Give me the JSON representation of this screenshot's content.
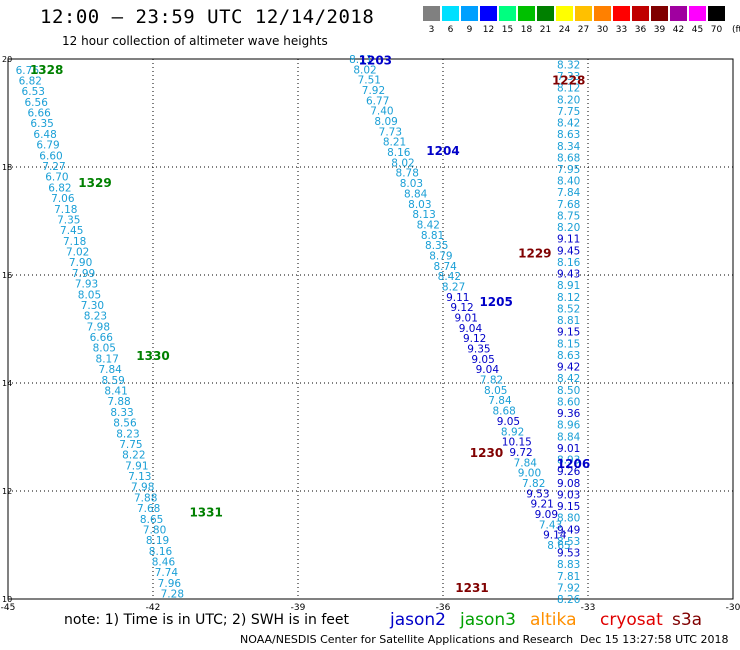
{
  "title": "12:00 – 23:59 UTC 12/14/2018",
  "subtitle": "12 hour collection of altimeter wave heights",
  "scale": {
    "unit": "(ft)",
    "bins": [
      {
        "label": "3",
        "color": "#808080"
      },
      {
        "label": "6",
        "color": "#00e0ff"
      },
      {
        "label": "9",
        "color": "#00a0ff"
      },
      {
        "label": "12",
        "color": "#0000ff"
      },
      {
        "label": "15",
        "color": "#00ff80"
      },
      {
        "label": "18",
        "color": "#00c000"
      },
      {
        "label": "21",
        "color": "#008000"
      },
      {
        "label": "24",
        "color": "#ffff00"
      },
      {
        "label": "27",
        "color": "#ffc000"
      },
      {
        "label": "30",
        "color": "#ff8000"
      },
      {
        "label": "33",
        "color": "#ff0000"
      },
      {
        "label": "36",
        "color": "#c00000"
      },
      {
        "label": "39",
        "color": "#800000"
      },
      {
        "label": "42",
        "color": "#a000a0"
      },
      {
        "label": "45",
        "color": "#ff00ff"
      },
      {
        "label": "70",
        "color": "#000000"
      }
    ]
  },
  "axes": {
    "lon_ticks": [
      -45,
      -42,
      -39,
      -36,
      -33,
      -30
    ],
    "lat_ticks": [
      10,
      12,
      14,
      16,
      18,
      20
    ],
    "lon_labels": [
      "-45",
      "-42",
      "-39",
      "-36",
      "-33",
      "-30"
    ],
    "lat_labels": [
      "10",
      "12",
      "14",
      "16",
      "18",
      "20"
    ],
    "lon_range": [
      -45,
      -30
    ],
    "lat_range": [
      10,
      20
    ]
  },
  "colors": {
    "light": "#1a9fd6",
    "dark": "#0000c8",
    "green": "#008000",
    "maroon": "#800000"
  },
  "track_labels": [
    {
      "text": "1328",
      "lon": -44.2,
      "lat": 19.8,
      "color": "green"
    },
    {
      "text": "1329",
      "lon": -43.2,
      "lat": 17.7,
      "color": "green"
    },
    {
      "text": "1330",
      "lon": -42.0,
      "lat": 14.5,
      "color": "green"
    },
    {
      "text": "1331",
      "lon": -40.9,
      "lat": 11.6,
      "color": "green"
    },
    {
      "text": "1203",
      "lon": -37.4,
      "lat": 19.97,
      "color": "dark"
    },
    {
      "text": "1204",
      "lon": -36.0,
      "lat": 18.3,
      "color": "dark"
    },
    {
      "text": "1205",
      "lon": -34.9,
      "lat": 15.5,
      "color": "dark"
    },
    {
      "text": "1206",
      "lon": -33.3,
      "lat": 12.5,
      "color": "dark"
    },
    {
      "text": "1228",
      "lon": -33.4,
      "lat": 19.6,
      "color": "maroon"
    },
    {
      "text": "1229",
      "lon": -34.1,
      "lat": 16.4,
      "color": "maroon"
    },
    {
      "text": "1230",
      "lon": -35.1,
      "lat": 12.7,
      "color": "maroon"
    },
    {
      "text": "1231",
      "lon": -35.4,
      "lat": 10.2,
      "color": "maroon"
    }
  ],
  "tracks": [
    {
      "name": "1328-1331",
      "lon_start": -44.6,
      "lat_start": 19.8,
      "lon_end": -41.6,
      "lat_end": 10.1,
      "color": "light",
      "values": [
        "6.76",
        "6.82",
        "6.53",
        "6.56",
        "6.66",
        "6.35",
        "6.48",
        "6.79",
        "6.60",
        "7.27",
        "6.70",
        "6.82",
        "7.06",
        "7.18",
        "7.35",
        "7.45",
        "7.18",
        "7.02",
        "7.90",
        "7.99",
        "7.93",
        "8.05",
        "7.30",
        "8.23",
        "7.98",
        "6.66",
        "8.05",
        "8.17",
        "7.84",
        "8.59",
        "8.41",
        "7.88",
        "8.33",
        "8.56",
        "8.23",
        "7.75",
        "8.22",
        "7.91",
        "7.13",
        "7.98",
        "7.88",
        "7.68",
        "8.65",
        "7.80",
        "8.19",
        "8.16",
        "8.46",
        "7.74",
        "7.96",
        "7.28"
      ],
      "dark_indices": []
    },
    {
      "name": "1203-1206",
      "lon_start": -37.7,
      "lat_start": 20.0,
      "lon_end": -33.6,
      "lat_end": 11.0,
      "color": "light",
      "values": [
        "8.11",
        "8.02",
        "7.51",
        "7.92",
        "6.77",
        "7.40",
        "8.09",
        "7.73",
        "8.21",
        "8.16",
        "8.02",
        "8.78",
        "8.03",
        "8.84",
        "8.03",
        "8.13",
        "8.42",
        "8.81",
        "8.35",
        "8.79",
        "8.74",
        "8.42",
        "8.27",
        "9.11",
        "9.12",
        "9.01",
        "9.04",
        "9.12",
        "9.35",
        "9.05",
        "9.04",
        "7.82",
        "8.05",
        "7.84",
        "8.68",
        "9.05",
        "8.92",
        "10.15",
        "9.72",
        "7.84",
        "9.00",
        "7.82",
        "9.53",
        "9.21",
        "9.09",
        "7.43",
        "9.14",
        "8.65"
      ],
      "dark_indices": [
        23,
        24,
        25,
        26,
        27,
        28,
        29,
        30,
        35,
        37,
        38,
        42,
        43,
        44,
        46
      ]
    },
    {
      "name": "1228-1231",
      "lon_start": -33.4,
      "lat_start": 19.9,
      "lon_end": -33.4,
      "lat_end": 10.0,
      "color": "light",
      "values": [
        "8.32",
        "7.33",
        "8.12",
        "8.20",
        "7.75",
        "8.42",
        "8.63",
        "8.34",
        "8.68",
        "7.95",
        "8.40",
        "7.84",
        "7.68",
        "8.75",
        "8.20",
        "9.11",
        "9.45",
        "8.16",
        "9.43",
        "8.91",
        "8.12",
        "8.52",
        "8.81",
        "9.15",
        "8.15",
        "8.63",
        "9.42",
        "8.42",
        "8.50",
        "8.60",
        "9.36",
        "8.96",
        "8.84",
        "9.01",
        "8.93",
        "9.26",
        "9.08",
        "9.03",
        "9.15",
        "8.80",
        "9.49",
        "8.53",
        "9.53",
        "8.83",
        "7.81",
        "7.92",
        "8.26"
      ],
      "dark_indices": [
        15,
        16,
        18,
        23,
        26,
        30,
        33,
        35,
        36,
        37,
        38,
        40,
        42
      ]
    }
  ],
  "note": "note:  1) Time is in UTC;  2) SWH is in feet",
  "legend": [
    {
      "name": "jason2",
      "color": "#0000c8"
    },
    {
      "name": "jason3",
      "color": "#00a000"
    },
    {
      "name": "altika",
      "color": "#ff9000"
    },
    {
      "name": "cryosat",
      "color": "#e00000"
    },
    {
      "name": "s3a",
      "color": "#800000"
    }
  ],
  "credit": "NOAA/NESDIS Center for Satellite Applications and Research",
  "timestamp": "Dec 15 13:27:58 UTC 2018"
}
